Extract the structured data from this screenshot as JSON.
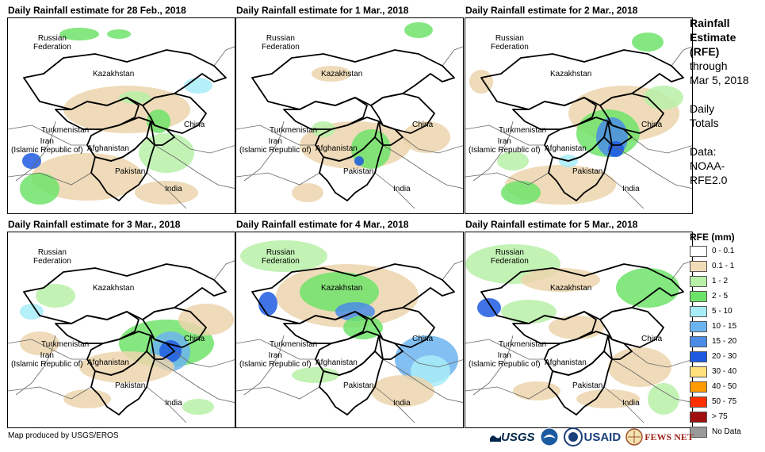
{
  "panels": [
    {
      "title": "Daily Rainfall estimate for 28 Feb., 2018"
    },
    {
      "title": "Daily Rainfall estimate for 1 Mar., 2018"
    },
    {
      "title": "Daily Rainfall estimate for 2 Mar., 2018"
    },
    {
      "title": "Daily Rainfall estimate for 3 Mar., 2018"
    },
    {
      "title": "Daily Rainfall estimate for 4 Mar., 2018"
    },
    {
      "title": "Daily Rainfall estimate for 5 Mar., 2018"
    }
  ],
  "map_labels": {
    "russia": "Russian Federation",
    "russia_l1": "Russian",
    "russia_l2": "Federation",
    "kazakhstan": "Kazakhstan",
    "turkmenistan": "Turkmenistan",
    "iran_l1": "Iran",
    "iran_l2": "(Islamic Republic of)",
    "afghanistan": "Afghanistan",
    "pakistan": "Pakistan",
    "china": "China",
    "india": "India"
  },
  "side": {
    "title_l1": "Rainfall",
    "title_l2": "Estimate",
    "title_l3": "(RFE)",
    "through": "through",
    "date": "Mar 5, 2018",
    "daily_l1": "Daily",
    "daily_l2": "Totals",
    "data_l1": "Data:",
    "data_l2": "NOAA-",
    "data_l3": "RFE2.0"
  },
  "legend": {
    "title": "RFE (mm)",
    "items": [
      {
        "label": "0 - 0.1",
        "color": "#ffffff"
      },
      {
        "label": "0.1 - 1",
        "color": "#f2dcb8"
      },
      {
        "label": "1 - 2",
        "color": "#b8f0a8"
      },
      {
        "label": "2 - 5",
        "color": "#6ee36a"
      },
      {
        "label": "5 - 10",
        "color": "#a8ecf8"
      },
      {
        "label": "10 - 15",
        "color": "#6cb4f0"
      },
      {
        "label": "15 - 20",
        "color": "#4a8ce6"
      },
      {
        "label": "20 - 30",
        "color": "#1e5ae0"
      },
      {
        "label": "30 - 40",
        "color": "#ffe07a"
      },
      {
        "label": "40 - 50",
        "color": "#ff9a00"
      },
      {
        "label": "50 - 75",
        "color": "#ff3000"
      },
      {
        "label": "> 75",
        "color": "#a01010"
      },
      {
        "label": "No Data",
        "color": "#9a9a9a"
      }
    ]
  },
  "footer": "Map produced by USGS/EROS",
  "logos": {
    "usgs": "USGS",
    "usaid": "USAID",
    "fewsnet": "FEWS NET"
  }
}
